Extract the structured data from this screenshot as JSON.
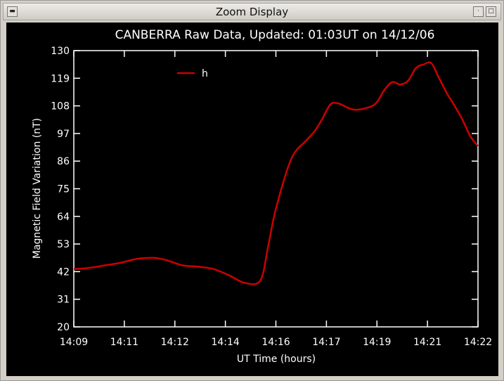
{
  "window": {
    "title": "Zoom Display",
    "menu_icon": "window-menu-icon",
    "minimize_icon": "minimize-icon",
    "maximize_icon": "maximize-icon"
  },
  "colors": {
    "background": "#000000",
    "axes": "#ffffff",
    "series_h": "#cc0000"
  },
  "chart_data": {
    "type": "line",
    "title": "CANBERRA Raw Data, Updated: 01:03UT on 14/12/06",
    "xlabel": "UT Time (hours)",
    "ylabel": "Magnetic Field Variation (nT)",
    "xlim": [
      "14:09",
      "14:22"
    ],
    "ylim": [
      20,
      130
    ],
    "xticks": [
      "14:09",
      "14:11",
      "14:12",
      "14:14",
      "14:16",
      "14:17",
      "14:19",
      "14:21",
      "14:22"
    ],
    "yticks": [
      20,
      31,
      42,
      53,
      64,
      75,
      86,
      97,
      108,
      119,
      130
    ],
    "legend_position": "top-left",
    "grid": false,
    "series": [
      {
        "name": "h",
        "color": "#cc0000",
        "x": [
          "14:09:00",
          "14:09:30",
          "14:10:00",
          "14:10:30",
          "14:11:00",
          "14:11:30",
          "14:11:45",
          "14:12:00",
          "14:12:30",
          "14:13:00",
          "14:13:30",
          "14:14:00",
          "14:14:30",
          "14:15:00",
          "14:15:15",
          "14:15:30",
          "14:16:00",
          "14:16:30",
          "14:16:45",
          "14:17:00",
          "14:17:15",
          "14:17:30",
          "14:18:00",
          "14:18:30",
          "14:18:45",
          "14:19:00",
          "14:19:15",
          "14:19:30",
          "14:19:45",
          "14:20:00",
          "14:20:15",
          "14:20:30",
          "14:20:45",
          "14:21:00",
          "14:21:15",
          "14:21:30",
          "14:21:45",
          "14:22:00"
        ],
        "y": [
          43.0,
          43.5,
          44.5,
          45.5,
          47.0,
          47.5,
          47.2,
          46.5,
          44.5,
          44.0,
          43.0,
          40.5,
          37.5,
          38.5,
          52.0,
          67.0,
          87.0,
          94.5,
          98.0,
          103.0,
          108.5,
          109.0,
          106.5,
          107.5,
          109.5,
          114.5,
          117.5,
          116.5,
          118.0,
          123.0,
          124.5,
          125.0,
          119.0,
          113.0,
          108.0,
          102.5,
          96.0,
          92.0
        ]
      }
    ]
  }
}
